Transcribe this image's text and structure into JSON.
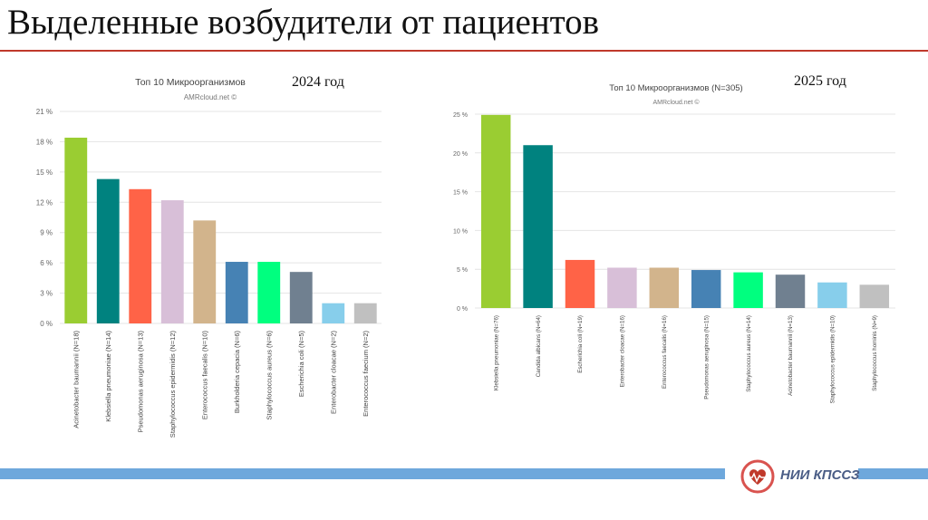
{
  "slide": {
    "title": "Выделенные возбудители от пациентов",
    "logo_text": "НИИ КПССЗ",
    "accent_color": "#c0392b",
    "bar_color": "#6ea8dc"
  },
  "chart_data": [
    {
      "type": "bar",
      "year_label": "2024 год",
      "title": "Топ 10 Микроорганизмов",
      "subtitle": "AMRcloud.net ©",
      "ylim": [
        0,
        21
      ],
      "yticks": [
        0,
        3,
        6,
        9,
        12,
        15,
        18,
        21
      ],
      "ytick_labels": [
        "0 %",
        "3 %",
        "6 %",
        "9 %",
        "12 %",
        "15 %",
        "18 %",
        "21 %"
      ],
      "grid": true,
      "categories": [
        "Acinetobacter baumannii (N=18)",
        "Klebsiella pneumoniae (N=14)",
        "Pseudomonas aeruginosa (N=13)",
        "Staphylococcus epidermidis (N=12)",
        "Enterococcus faecalis (N=10)",
        "Burkholderia cepacia (N=6)",
        "Staphylococcus aureus (N=6)",
        "Escherichia coli (N=5)",
        "Enterobacter cloacae (N=2)",
        "Enterococcus faecium (N=2)"
      ],
      "values": [
        18.4,
        14.3,
        13.3,
        12.2,
        10.2,
        6.1,
        6.1,
        5.1,
        2.0,
        2.0
      ],
      "colors": [
        "#9acd32",
        "#00827f",
        "#ff6347",
        "#d8bfd8",
        "#d2b48c",
        "#4682b4",
        "#00ff7f",
        "#708090",
        "#87ceeb",
        "#c0c0c0"
      ]
    },
    {
      "type": "bar",
      "year_label": "2025 год",
      "title": "Топ 10 Микроорганизмов (N=305)",
      "subtitle": "AMRcloud.net ©",
      "ylim": [
        0,
        25
      ],
      "yticks": [
        0,
        5,
        10,
        15,
        20,
        25
      ],
      "ytick_labels": [
        "0 %",
        "5 %",
        "10 %",
        "15 %",
        "20 %",
        "25 %"
      ],
      "grid": true,
      "categories": [
        "Klebsiella pneumoniae (N=76)",
        "Candida albicans (N=64)",
        "Escherichia coli (N=19)",
        "Enterobacter cloacae (N=16)",
        "Enterococcus faecalis (N=16)",
        "Pseudomonas aeruginosa (N=15)",
        "Staphylococcus aureus (N=14)",
        "Acinetobacter baumannii (N=13)",
        "Staphylococcus epidermidis (N=10)",
        "Staphylococcus hominis (N=9)"
      ],
      "values": [
        24.9,
        21.0,
        6.2,
        5.2,
        5.2,
        4.9,
        4.6,
        4.3,
        3.3,
        3.0
      ],
      "colors": [
        "#9acd32",
        "#00827f",
        "#ff6347",
        "#d8bfd8",
        "#d2b48c",
        "#4682b4",
        "#00ff7f",
        "#708090",
        "#87ceeb",
        "#c0c0c0"
      ]
    }
  ]
}
